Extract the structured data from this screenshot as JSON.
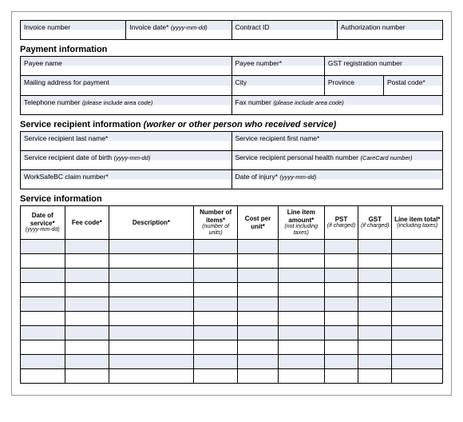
{
  "top_row": {
    "invoice_number": "Invoice number",
    "invoice_date": "Invoice date*",
    "invoice_date_hint": "(yyyy-mm-dd)",
    "contract_id": "Contract ID",
    "authorization_number": "Authorization number"
  },
  "sections": {
    "payment": {
      "title": "Payment information",
      "payee_name": "Payee name",
      "payee_number": "Payee number*",
      "gst_reg": "GST registration number",
      "mailing": "Mailing address for payment",
      "city": "City",
      "province": "Province",
      "postal": "Postal code*",
      "telephone": "Telephone number",
      "tel_hint": "(please include area code)",
      "fax": "Fax number",
      "fax_hint": "(please include area code)"
    },
    "recipient": {
      "title": "Service recipient information",
      "subtitle": "(worker or other person who received service)",
      "last_name": "Service recipient last name*",
      "first_name": "Service recipient first name*",
      "dob": "Service recipient date of birth",
      "dob_hint": "(yyyy-mm-dd)",
      "phn": "Service recipient personal health number",
      "phn_hint": "(CareCard number)",
      "claim": "WorkSafeBC claim number*",
      "injury": "Date of injury*",
      "injury_hint": "(yyyy-mm-dd)"
    },
    "service": {
      "title": "Service information",
      "columns": {
        "date": "Date of service*",
        "date_hint": "(yyyy-mm-dd)",
        "fee": "Fee code*",
        "desc": "Description*",
        "num": "Number of items*",
        "num_hint": "(number of units)",
        "cost": "Cost per unit*",
        "amt": "Line item amount*",
        "amt_hint": "(not including taxes)",
        "pst": "PST",
        "pst_hint": "(if charged)",
        "gst": "GST",
        "gst_hint": "(if charged)",
        "tot": "Line item total*",
        "tot_hint": "(including taxes)"
      },
      "row_count": 10
    }
  }
}
